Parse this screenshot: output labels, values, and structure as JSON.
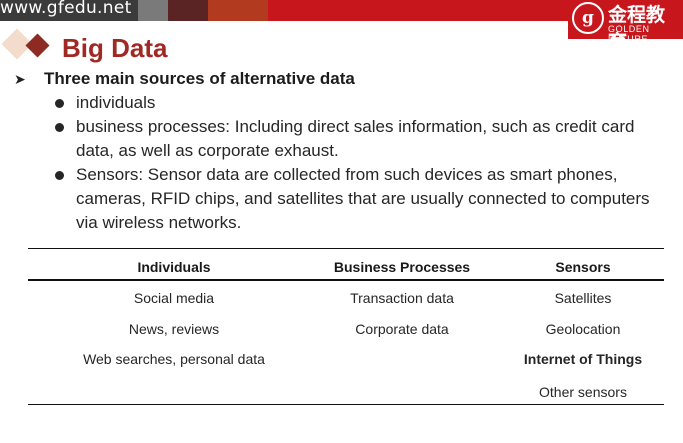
{
  "header": {
    "site_url": "www.gfedu.net"
  },
  "logo": {
    "mark": "g",
    "cn_name": "金程教育",
    "en_name": "GOLDEN FUTURE"
  },
  "slide": {
    "title": "Big Data",
    "heading": "Three main sources of alternative data",
    "bullets": [
      {
        "line1": "individuals"
      },
      {
        "line1": "business processes: Including direct sales information, such as credit card",
        "line2": "data, as well as corporate exhaust."
      },
      {
        "line1": "Sensors: Sensor data are collected from such devices as smart phones,",
        "line2": "cameras, RFID chips, and satellites that are usually connected to computers",
        "line3": "via wireless networks."
      }
    ]
  },
  "table": {
    "headers": [
      "Individuals",
      "Business Processes",
      "Sensors"
    ],
    "rows": [
      [
        "Social media",
        "Transaction data",
        "Satellites"
      ],
      [
        "News, reviews",
        "Corporate data",
        "Geolocation"
      ],
      [
        "Web searches, personal data",
        "",
        "Internet of Things"
      ],
      [
        "",
        "",
        "Other sensors"
      ]
    ]
  },
  "colors": {
    "brand_red": "#c8161d",
    "title_red": "#a02924",
    "diamond_dark": "#8d2b22",
    "diamond_light": "#f3dccb"
  },
  "icons": {
    "bullet_marker": "arrow-icon",
    "logo": "golden-future-logo-icon"
  }
}
